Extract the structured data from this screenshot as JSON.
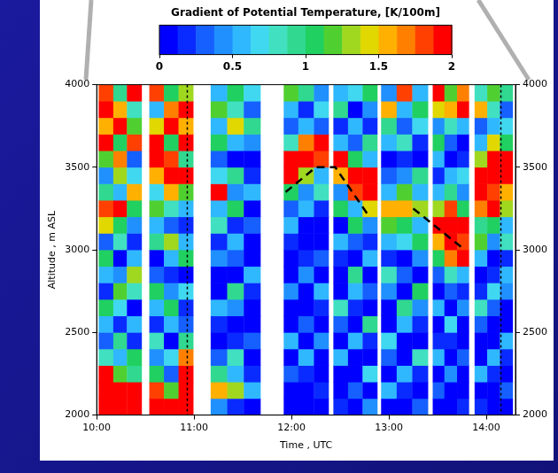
{
  "chart_data": {
    "type": "heatmap",
    "x_label": "Time , UTC",
    "y_label": "Altitude , m ASL",
    "xlim": [
      10,
      14.3
    ],
    "xticks": [
      {
        "value": 10,
        "label": "10:00"
      },
      {
        "value": 11,
        "label": "11:00"
      },
      {
        "value": 12,
        "label": "12:00"
      },
      {
        "value": 13,
        "label": "13:00"
      },
      {
        "value": 14,
        "label": "14:00"
      }
    ],
    "ylim": [
      2000,
      4000
    ],
    "yticks": [
      2000,
      2500,
      3000,
      3500,
      4000
    ],
    "y2lim": [
      2000,
      4000
    ],
    "y2ticks": [
      2000,
      2500,
      3000,
      3500,
      4000
    ],
    "grid": false,
    "colorbar": {
      "title": "Gradient of Potential Temperature, [K/100m]",
      "range": [
        0,
        2
      ],
      "ticks": [
        0,
        0.5,
        1,
        1.5,
        2
      ]
    },
    "cells": {
      "altitude_edges": [
        2000,
        2100,
        2200,
        2300,
        2400,
        2500,
        2600,
        2700,
        2800,
        2900,
        3000,
        3100,
        3200,
        3300,
        3400,
        3500,
        3600,
        3700,
        3800,
        3900,
        4000
      ],
      "columns": [
        {
          "start": 10.02,
          "end": 10.17,
          "values": [
            2,
            2,
            1.9,
            0.8,
            0.3,
            0.6,
            1.0,
            0.2,
            0.5,
            1.1,
            0.3,
            1.4,
            1.8,
            0.9,
            0.4,
            1.2,
            1.9,
            1.5,
            2.0,
            1.8
          ]
        },
        {
          "start": 10.17,
          "end": 10.31,
          "values": [
            2,
            1.9,
            1.2,
            0.5,
            0.9,
            0.2,
            0.7,
            1.2,
            0.4,
            0.1,
            0.8,
            1.0,
            2.0,
            0.6,
            1.3,
            1.7,
            1.0,
            2.0,
            1.6,
            0.9
          ]
        },
        {
          "start": 10.31,
          "end": 10.46,
          "values": [
            2,
            2,
            0.9,
            1.1,
            0.2,
            0.5,
            0.1,
            0.8,
            1.3,
            0.6,
            0.2,
            0.4,
            1.1,
            1.5,
            0.7,
            0.3,
            1.8,
            1.2,
            0.8,
            2.0
          ]
        },
        {
          "start": 10.54,
          "end": 10.69,
          "values": [
            2,
            1.8,
            1.0,
            0.4,
            0.8,
            0.2,
            0.6,
            1.0,
            0.3,
            0.1,
            0.9,
            0.5,
            1.2,
            0.7,
            1.6,
            1.9,
            2.0,
            1.4,
            0.6,
            1.8
          ]
        },
        {
          "start": 10.69,
          "end": 10.84,
          "values": [
            1.9,
            1.2,
            0.3,
            0.7,
            0.1,
            0.5,
            1.1,
            0.4,
            0.2,
            0.6,
            1.3,
            0.3,
            0.8,
            1.5,
            2.0,
            1.8,
            1.1,
            2.0,
            1.7,
            1.0
          ]
        },
        {
          "start": 10.84,
          "end": 10.99,
          "values": [
            2,
            2,
            2,
            1.7,
            0.9,
            0.3,
            0.2,
            0.7,
            0.1,
            1.0,
            0.5,
            0.2,
            0.6,
            1.2,
            1.9,
            0.9,
            2.0,
            1.6,
            2.0,
            1.3
          ]
        },
        {
          "start": 11.17,
          "end": 11.34,
          "values": [
            0.4,
            1.6,
            0.9,
            0.3,
            0.1,
            0.2,
            0.6,
            0.1,
            0.0,
            0.4,
            0.2,
            0.8,
            0.5,
            1.9,
            0.7,
            0.3,
            1.0,
            0.5,
            1.2,
            0.6
          ]
        },
        {
          "start": 11.34,
          "end": 11.51,
          "values": [
            0.2,
            1.3,
            0.5,
            0.8,
            0.2,
            0.0,
            0.4,
            0.9,
            0.1,
            0.3,
            0.6,
            0.2,
            1.1,
            0.4,
            0.9,
            0.1,
            0.5,
            1.4,
            0.8,
            1.0
          ]
        },
        {
          "start": 11.51,
          "end": 11.68,
          "values": [
            0.1,
            0.6,
            0.2,
            0.1,
            0.3,
            0.0,
            0.1,
            0.2,
            0.5,
            0.0,
            0.1,
            0.3,
            0.0,
            0.6,
            0.2,
            0.1,
            0.4,
            0.9,
            0.3,
            0.7
          ]
        },
        {
          "start": 11.92,
          "end": 12.07,
          "values": [
            0.0,
            0.1,
            0.3,
            0.0,
            0.6,
            0.1,
            0.0,
            0.4,
            0.1,
            0.0,
            0.2,
            0.5,
            0.3,
            1.0,
            1.9,
            2.0,
            0.8,
            0.3,
            0.6,
            1.2
          ]
        },
        {
          "start": 12.07,
          "end": 12.23,
          "values": [
            0.1,
            0.0,
            0.2,
            0.5,
            0.0,
            0.3,
            0.1,
            0.0,
            0.4,
            0.2,
            0.0,
            0.1,
            0.6,
            0.4,
            1.3,
            2.0,
            1.7,
            0.5,
            0.2,
            0.9
          ]
        },
        {
          "start": 12.23,
          "end": 12.38,
          "values": [
            0.0,
            0.2,
            0.0,
            0.1,
            0.4,
            0.0,
            0.2,
            0.6,
            0.0,
            0.3,
            0.1,
            0.0,
            0.2,
            0.8,
            0.6,
            1.8,
            2.0,
            0.3,
            0.7,
            0.4
          ]
        },
        {
          "start": 12.43,
          "end": 12.58,
          "values": [
            0.2,
            0.0,
            0.1,
            0.5,
            0.0,
            0.3,
            0.8,
            0.1,
            0.0,
            0.2,
            0.6,
            0.1,
            1.0,
            0.4,
            1.5,
            2.0,
            0.6,
            0.2,
            0.9,
            0.5
          ]
        },
        {
          "start": 12.58,
          "end": 12.73,
          "values": [
            0.0,
            0.3,
            0.0,
            0.1,
            0.6,
            0.0,
            0.2,
            0.5,
            0.9,
            0.0,
            0.3,
            1.1,
            0.5,
            1.8,
            2.0,
            1.1,
            0.3,
            0.5,
            0.1,
            0.7
          ]
        },
        {
          "start": 12.73,
          "end": 12.88,
          "values": [
            0.4,
            0.1,
            0.7,
            0.0,
            0.2,
            0.9,
            0.0,
            0.3,
            0.1,
            0.6,
            0.2,
            0.4,
            1.4,
            2.0,
            1.9,
            0.6,
            0.9,
            0.2,
            0.4,
            1.0
          ]
        },
        {
          "start": 12.92,
          "end": 13.08,
          "values": [
            0.1,
            0.5,
            0.0,
            0.3,
            0.7,
            0.1,
            0.0,
            0.4,
            0.8,
            0.2,
            0.5,
            1.2,
            1.5,
            0.6,
            0.3,
            0.1,
            0.5,
            0.9,
            1.5,
            0.4
          ]
        },
        {
          "start": 13.08,
          "end": 13.24,
          "values": [
            0.0,
            0.2,
            0.6,
            0.0,
            0.1,
            0.5,
            0.9,
            0.0,
            0.3,
            0.1,
            0.7,
            1.0,
            1.6,
            1.2,
            0.4,
            0.2,
            0.8,
            0.3,
            0.6,
            1.8
          ]
        },
        {
          "start": 13.24,
          "end": 13.4,
          "values": [
            0.3,
            0.0,
            0.2,
            0.8,
            0.0,
            0.2,
            0.4,
            1.0,
            0.1,
            0.4,
            1.1,
            0.6,
            1.3,
            0.5,
            0.9,
            0.0,
            0.2,
            0.7,
            1.1,
            0.5
          ]
        },
        {
          "start": 13.45,
          "end": 13.57,
          "values": [
            0.1,
            0.3,
            0.0,
            0.5,
            0.2,
            0.0,
            0.6,
            0.1,
            0.3,
            1.0,
            1.6,
            1.9,
            1.3,
            0.6,
            0.2,
            0.5,
            1.0,
            0.4,
            1.4,
            2.0
          ]
        },
        {
          "start": 13.57,
          "end": 13.7,
          "values": [
            0.0,
            0.1,
            0.4,
            0.0,
            0.2,
            0.7,
            0.0,
            0.3,
            0.8,
            1.7,
            2.0,
            2.0,
            1.8,
            0.9,
            0.5,
            0.1,
            0.3,
            0.8,
            1.6,
            1.2
          ]
        },
        {
          "start": 13.7,
          "end": 13.82,
          "values": [
            0.2,
            0.0,
            0.1,
            0.3,
            0.0,
            0.1,
            0.4,
            0.2,
            0.5,
            2.0,
            1.8,
            2.0,
            1.1,
            0.4,
            0.7,
            0.2,
            0.0,
            0.5,
            2.0,
            1.7
          ]
        },
        {
          "start": 13.88,
          "end": 14.01,
          "values": [
            0.2,
            0.0,
            0.5,
            0.1,
            0.0,
            0.3,
            0.8,
            0.2,
            0.1,
            0.6,
            1.2,
            0.9,
            1.7,
            2.0,
            1.9,
            1.3,
            0.6,
            0.3,
            1.5,
            0.8
          ]
        },
        {
          "start": 14.01,
          "end": 14.14,
          "values": [
            0.0,
            0.1,
            0.2,
            0.6,
            0.1,
            0.0,
            0.3,
            0.7,
            0.2,
            0.1,
            0.4,
            1.0,
            2.0,
            1.8,
            2.0,
            2.0,
            1.4,
            0.5,
            0.8,
            1.2
          ]
        },
        {
          "start": 14.14,
          "end": 14.27,
          "values": [
            0.1,
            0.3,
            0.0,
            0.2,
            0.5,
            0.1,
            0.0,
            0.4,
            0.6,
            0.2,
            0.8,
            0.5,
            1.3,
            1.6,
            2.0,
            1.9,
            1.0,
            0.7,
            0.3,
            0.9
          ]
        }
      ]
    },
    "dashed_lines": [
      {
        "x": [
          11.94,
          12.25,
          12.45,
          12.8
        ],
        "y": [
          3350,
          3500,
          3500,
          3200
        ]
      },
      {
        "x": [
          13.25,
          13.78
        ],
        "y": [
          3250,
          3000
        ]
      }
    ],
    "vertical_lines": [
      10.93,
      14.15
    ]
  }
}
